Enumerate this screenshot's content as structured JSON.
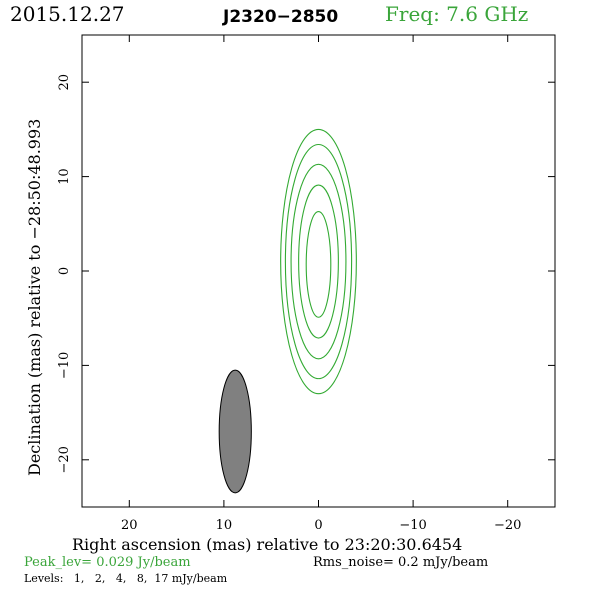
{
  "header": {
    "date": "2015.12.27",
    "source": "J2320−2850",
    "freq": "Freq: 7.6 GHz"
  },
  "colors": {
    "contour": "#33aa33",
    "label_green": "#3aa53a",
    "beam_fill": "#808080",
    "axis": "#000000"
  },
  "chart_data": {
    "type": "contour",
    "xlabel": "Right ascension (mas) relative to 23:20:30.6454",
    "ylabel": "Declination (mas) relative to −28:50:48.993",
    "xlim": [
      25,
      -25
    ],
    "ylim": [
      -25,
      25
    ],
    "x_ticks": [
      20,
      10,
      0,
      -10,
      -20
    ],
    "x_tick_labels": [
      "20",
      "10",
      "0",
      "−10",
      "−20"
    ],
    "y_ticks": [
      20,
      10,
      0,
      -10,
      -20
    ],
    "y_tick_labels": [
      "20",
      "10",
      "0",
      "−10",
      "−20"
    ],
    "contours": [
      {
        "level_mJy": 1,
        "center": [
          0,
          1
        ],
        "semi_x": 4.0,
        "semi_y": 14.0
      },
      {
        "level_mJy": 2,
        "center": [
          0,
          1
        ],
        "semi_x": 3.5,
        "semi_y": 12.4
      },
      {
        "level_mJy": 4,
        "center": [
          0,
          1
        ],
        "semi_x": 2.9,
        "semi_y": 10.3
      },
      {
        "level_mJy": 8,
        "center": [
          0,
          1
        ],
        "semi_x": 2.1,
        "semi_y": 8.1
      },
      {
        "level_mJy": 17,
        "center": [
          0,
          0.7
        ],
        "semi_x": 1.3,
        "semi_y": 5.6
      }
    ],
    "beam": {
      "center": [
        8.8,
        -17.0
      ],
      "semi_x": 1.7,
      "semi_y": 6.5
    }
  },
  "footer": {
    "peak_lev": "Peak_lev=  0.029 Jy/beam",
    "rms_noise": "Rms_noise=   0.2 mJy/beam",
    "levels": "Levels:   1,   2,   4,   8,  17 mJy/beam"
  }
}
